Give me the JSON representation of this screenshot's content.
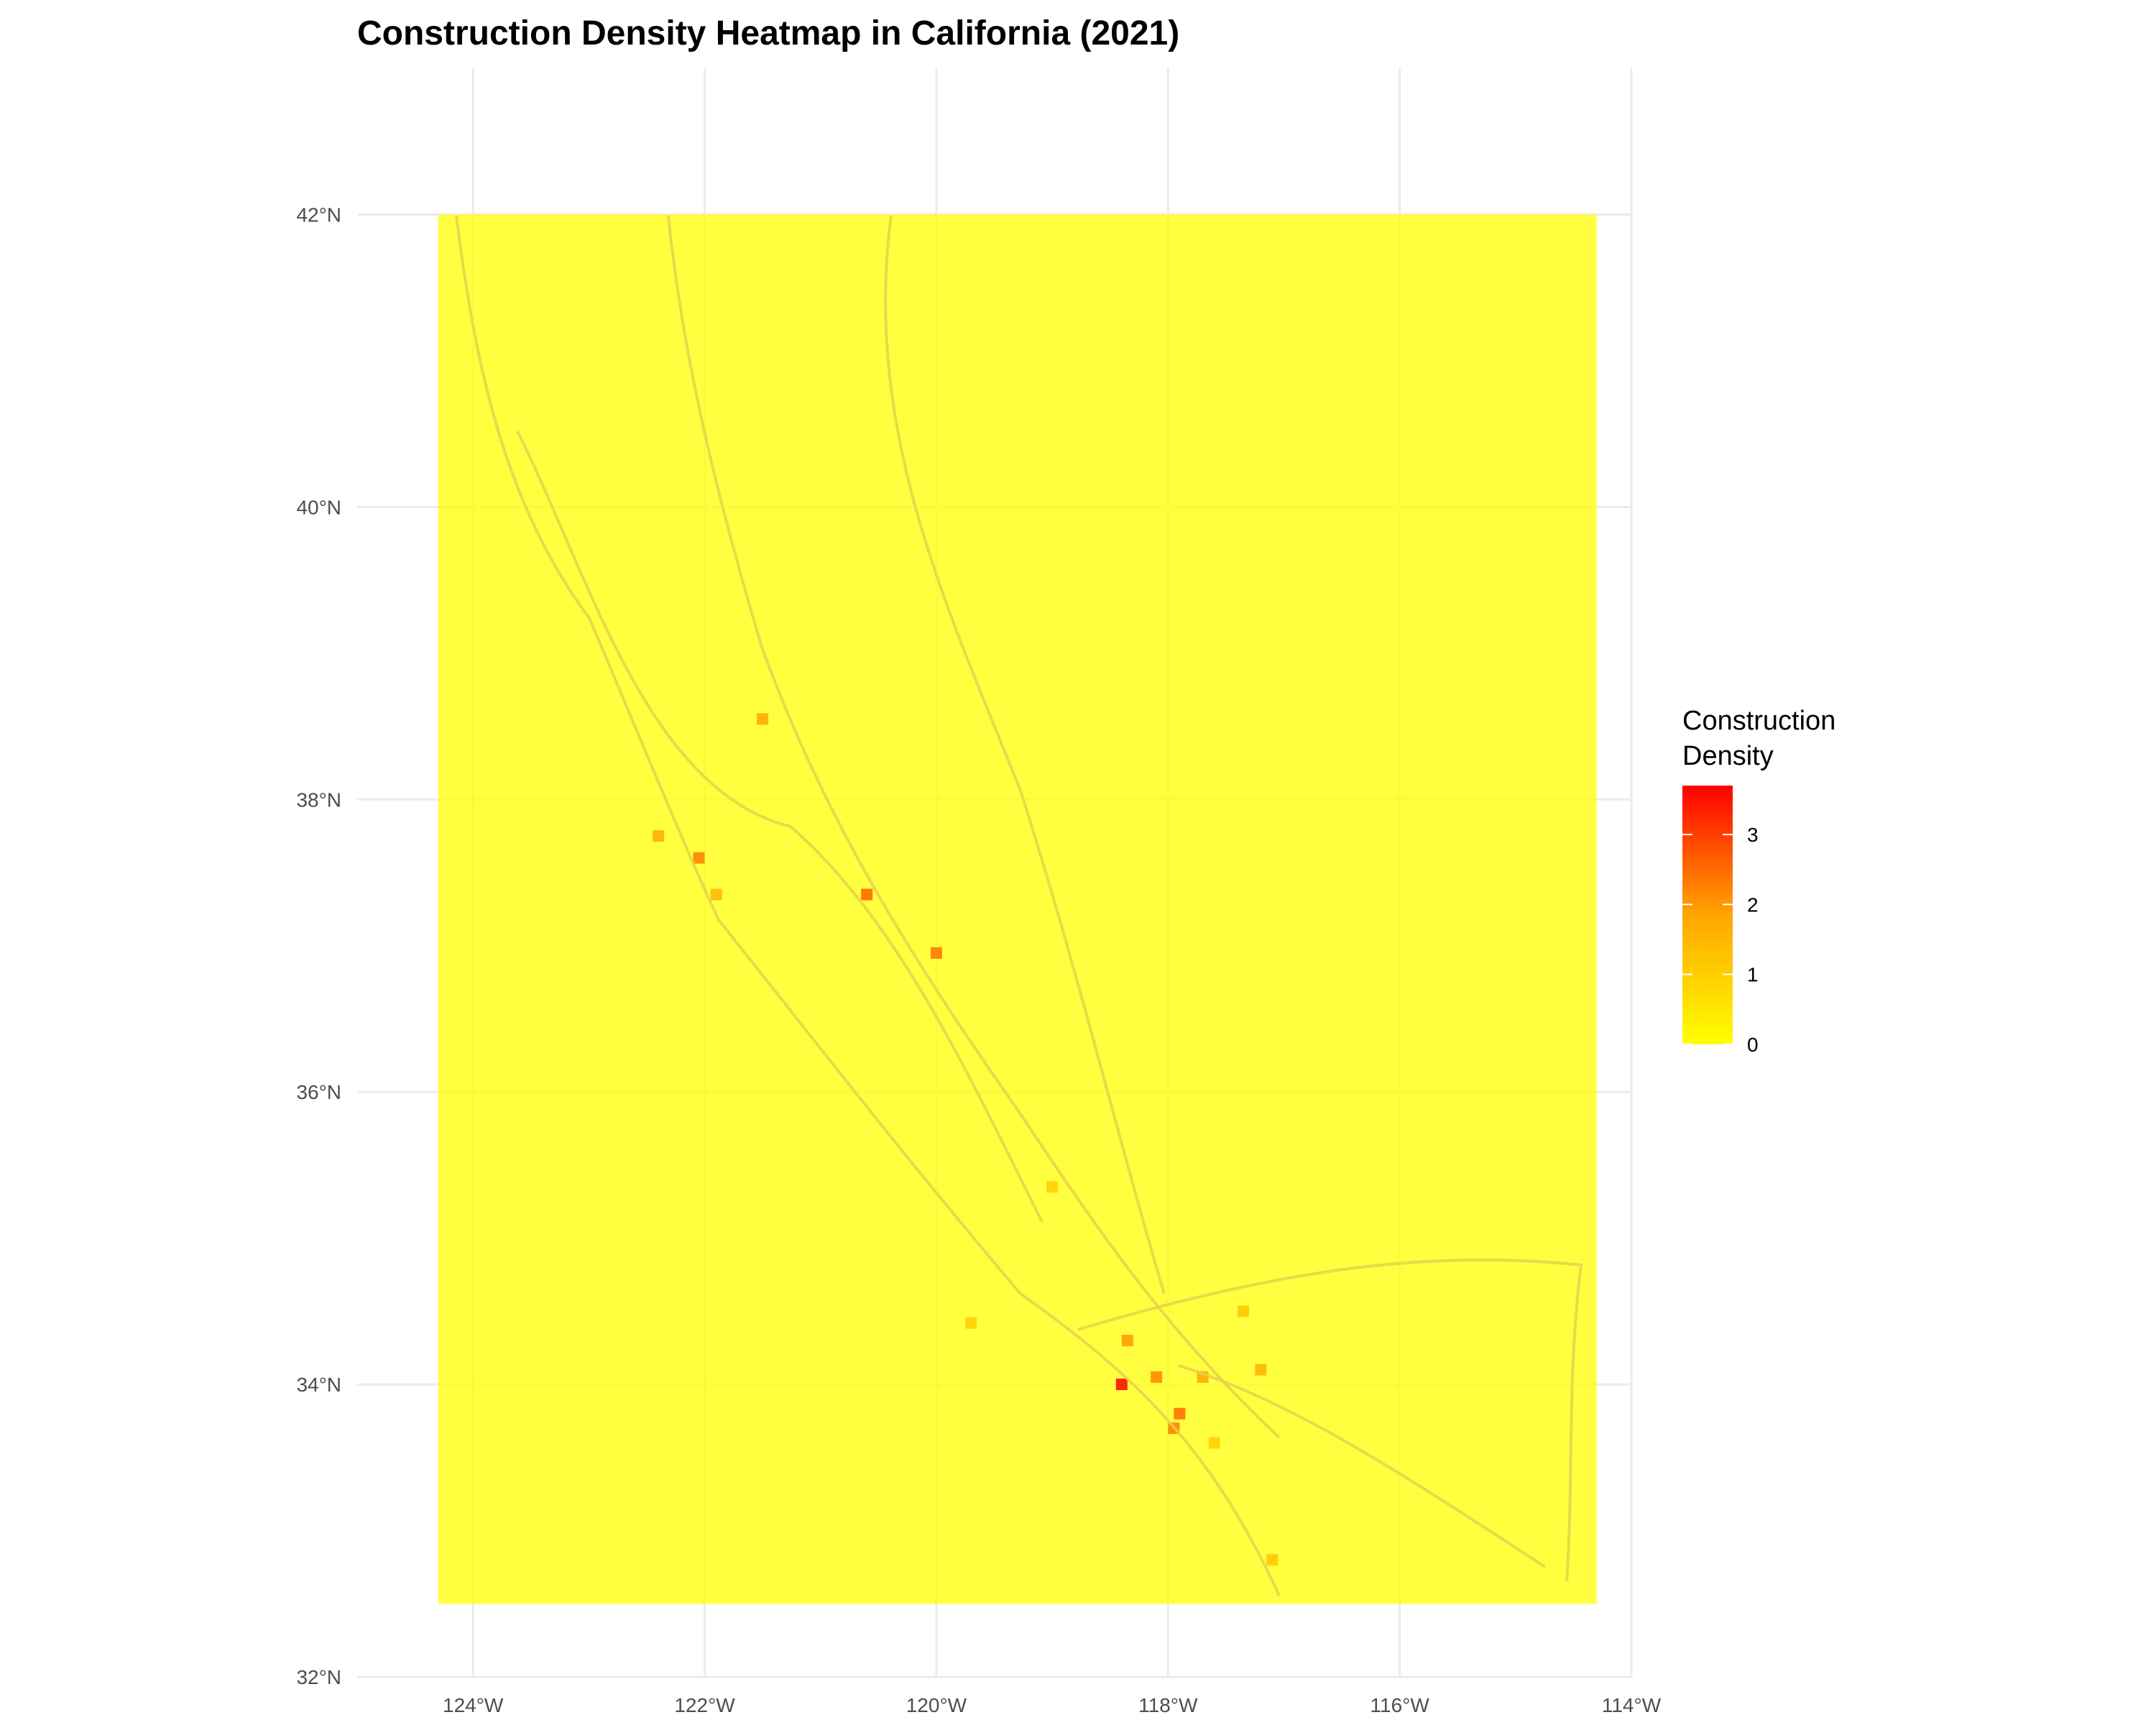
{
  "chart_data": {
    "type": "heatmap",
    "title": "Construction Density Heatmap in California (2021)",
    "xlabel": "",
    "ylabel": "",
    "x_tick_labels": [
      "124°W",
      "122°W",
      "120°W",
      "118°W",
      "116°W",
      "114°W"
    ],
    "x_ticks": [
      -124,
      -122,
      -120,
      -118,
      -116,
      -114
    ],
    "y_tick_labels": [
      "32°N",
      "34°N",
      "36°N",
      "38°N",
      "40°N",
      "42°N"
    ],
    "y_ticks": [
      32,
      34,
      36,
      38,
      40,
      42
    ],
    "xlim": [
      -125,
      -114
    ],
    "ylim": [
      32,
      43
    ],
    "grid": true,
    "raster_extent": {
      "lon": [
        -124.3,
        -114.3
      ],
      "lat": [
        32.5,
        42.0
      ]
    },
    "background_value": 0,
    "hotspots": [
      {
        "lon": -118.4,
        "lat": 34.0,
        "value": 3.7
      },
      {
        "lon": -118.35,
        "lat": 34.3,
        "value": 2.0
      },
      {
        "lon": -118.1,
        "lat": 34.05,
        "value": 2.2
      },
      {
        "lon": -117.9,
        "lat": 33.8,
        "value": 2.5
      },
      {
        "lon": -117.95,
        "lat": 33.7,
        "value": 2.3
      },
      {
        "lon": -117.7,
        "lat": 34.05,
        "value": 1.8
      },
      {
        "lon": -117.2,
        "lat": 34.1,
        "value": 1.6
      },
      {
        "lon": -117.35,
        "lat": 34.5,
        "value": 1.2
      },
      {
        "lon": -117.6,
        "lat": 33.6,
        "value": 1.0
      },
      {
        "lon": -117.1,
        "lat": 32.8,
        "value": 1.2
      },
      {
        "lon": -121.5,
        "lat": 38.55,
        "value": 1.8
      },
      {
        "lon": -122.4,
        "lat": 37.75,
        "value": 1.7
      },
      {
        "lon": -122.05,
        "lat": 37.6,
        "value": 2.3
      },
      {
        "lon": -121.9,
        "lat": 37.35,
        "value": 1.5
      },
      {
        "lon": -120.6,
        "lat": 37.35,
        "value": 2.6
      },
      {
        "lon": -120.0,
        "lat": 36.95,
        "value": 2.4
      },
      {
        "lon": -119.0,
        "lat": 35.35,
        "value": 1.0
      },
      {
        "lon": -119.7,
        "lat": 34.42,
        "value": 1.0
      }
    ],
    "legend": {
      "title_line1": "Construction",
      "title_line2": "Density",
      "labels": [
        "0",
        "1",
        "2",
        "3"
      ],
      "breaks": [
        0,
        1,
        2,
        3
      ],
      "max": 3.7,
      "colors": {
        "low": "#ffff00",
        "mid": "#ffa500",
        "high": "#ff0000"
      },
      "placement": "right"
    }
  }
}
